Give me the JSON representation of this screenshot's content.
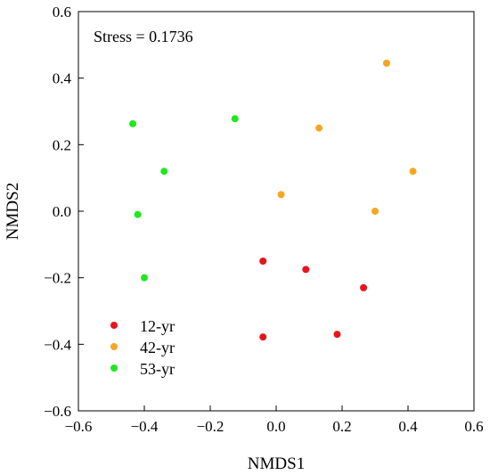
{
  "chart_data": {
    "type": "scatter",
    "title": "",
    "annotation": "Stress = 0.1736",
    "xlabel": "NMDS1",
    "ylabel": "NMDS2",
    "xlim": [
      -0.6,
      0.6
    ],
    "ylim": [
      -0.6,
      0.6
    ],
    "xticks": [
      -0.6,
      -0.4,
      -0.2,
      0.0,
      0.2,
      0.4,
      0.6
    ],
    "yticks": [
      -0.6,
      -0.4,
      -0.2,
      0.0,
      0.2,
      0.4,
      0.6
    ],
    "xtick_labels": [
      "−0.6",
      "−0.4",
      "−0.2",
      "0.0",
      "0.2",
      "0.4",
      "0.6"
    ],
    "ytick_labels": [
      "−0.6",
      "−0.4",
      "−0.2",
      "0.0",
      "0.2",
      "0.4",
      "0.6"
    ],
    "grid": false,
    "legend_position": "bottom-left",
    "series": [
      {
        "name": "12-yr",
        "color": "#e8141c",
        "points": [
          [
            -0.04,
            -0.15
          ],
          [
            0.09,
            -0.175
          ],
          [
            0.265,
            -0.23
          ],
          [
            0.185,
            -0.37
          ],
          [
            -0.04,
            -0.378
          ]
        ]
      },
      {
        "name": "42-yr",
        "color": "#f5a623",
        "points": [
          [
            0.335,
            0.445
          ],
          [
            0.13,
            0.25
          ],
          [
            0.415,
            0.12
          ],
          [
            0.015,
            0.05
          ],
          [
            0.3,
            0.0
          ]
        ]
      },
      {
        "name": "53-yr",
        "color": "#1ee81e",
        "points": [
          [
            -0.125,
            0.278
          ],
          [
            -0.435,
            0.263
          ],
          [
            -0.34,
            0.12
          ],
          [
            -0.42,
            -0.01
          ],
          [
            -0.4,
            -0.2
          ]
        ]
      }
    ]
  }
}
